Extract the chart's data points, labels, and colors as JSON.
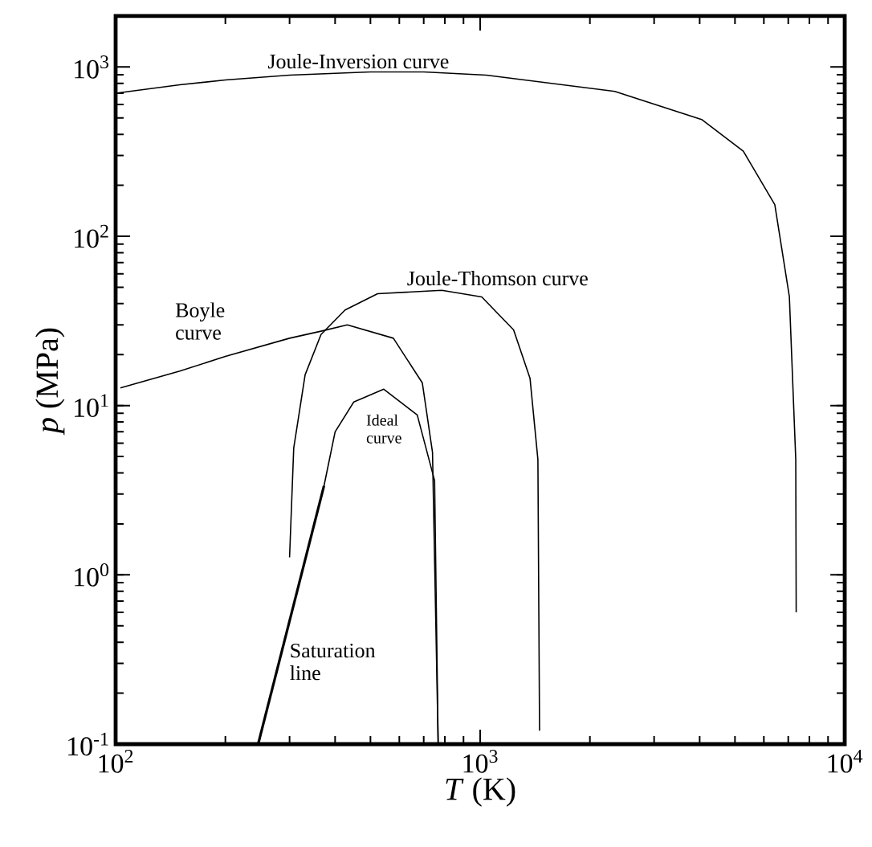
{
  "chart_data": {
    "type": "line",
    "xlabel": "*T* (K)",
    "ylabel": "*p* (MPa)",
    "log": "xy",
    "grid": false,
    "marker": "none",
    "line_style": "solid",
    "xlim": [
      100,
      10000
    ],
    "ylim": [
      0.1,
      2000
    ],
    "xticks": [
      {
        "value": 100,
        "label": "10$^{2}$"
      },
      {
        "value": 1000,
        "label": "10$^{3}$"
      },
      {
        "value": 10000,
        "label": "10$^{4}$"
      }
    ],
    "yticks": [
      {
        "value": 0.1,
        "label": "10$^{-1}$"
      },
      {
        "value": 1,
        "label": "10$^{0}$"
      },
      {
        "value": 10,
        "label": "10$^{1}$"
      },
      {
        "value": 100,
        "label": "10$^{2}$"
      },
      {
        "value": 1000,
        "label": "10$^{3}$"
      }
    ],
    "series": [
      {
        "color": "#000000",
        "x": [
          100,
          150,
          200,
          300,
          500,
          700,
          1040,
          2340,
          4050,
          5270,
          6430,
          7050,
          7340,
          7360
        ],
        "values": [
          700,
          785,
          838,
          895,
          935,
          935,
          895,
          718,
          490,
          318,
          154,
          44,
          4.8,
          0.6
        ]
      },
      {
        "color": "#000000",
        "x": [
          300,
          308,
          331,
          366,
          426,
          523,
          785,
          1010,
          1235,
          1370,
          1440,
          1455
        ],
        "values": [
          1.27,
          5.6,
          15.2,
          26.3,
          36.7,
          45.8,
          48,
          43.8,
          28,
          14.5,
          4.8,
          0.12
        ]
      },
      {
        "color": "#000000",
        "x": [
          103,
          150,
          200,
          300,
          366,
          432,
          578,
          694,
          740,
          767
        ],
        "values": [
          12.7,
          16,
          19.5,
          25,
          27.5,
          30,
          25,
          13.6,
          5.3,
          0.1
        ]
      },
      {
        "color": "#000000",
        "x": [
          373,
          400,
          450,
          544,
          672,
          750,
          767
        ],
        "values": [
          3.36,
          7,
          10.5,
          12.5,
          8.8,
          3.6,
          0.1
        ]
      },
      {
        "color": "#000000",
        "x": [
          246,
          373
        ],
        "values": [
          0.1,
          3.36
        ]
      }
    ],
    "annotations": [
      "Joule-Inversion curve",
      "Joule-Thomson curve",
      "Boyle curve",
      "Ideal curve",
      "Saturation line"
    ]
  }
}
